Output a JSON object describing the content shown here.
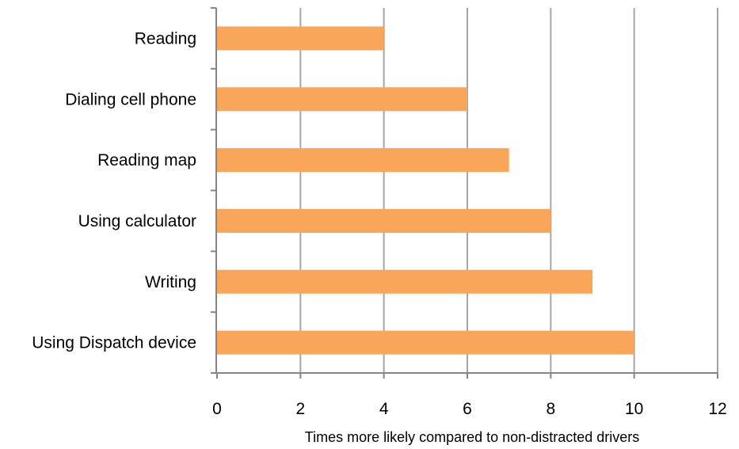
{
  "chart_data": {
    "type": "bar",
    "orientation": "horizontal",
    "categories": [
      "Reading",
      "Dialing cell phone",
      "Reading map",
      "Using calculator",
      "Writing",
      "Using Dispatch device"
    ],
    "values": [
      4,
      6,
      7,
      8,
      9,
      10
    ],
    "title": "",
    "xlabel": "Times more likely compared to non-distracted drivers",
    "ylabel": "",
    "xlim": [
      0,
      12
    ],
    "xticks": [
      "0",
      "2",
      "4",
      "6",
      "8",
      "10",
      "12"
    ],
    "grid": "vertical",
    "legend": "none",
    "colors": {
      "bar": "#F9A65A",
      "grid": "#A6A6A6",
      "axis": "#868686",
      "text": "#000000"
    }
  }
}
